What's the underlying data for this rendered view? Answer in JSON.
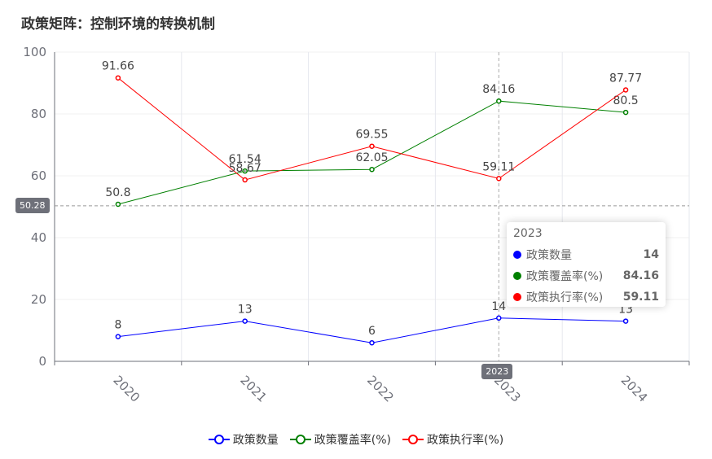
{
  "title": "政策矩阵：控制环境的转换机制",
  "chart_data": {
    "type": "line",
    "categories": [
      "2020",
      "2021",
      "2022",
      "2023",
      "2024"
    ],
    "ylim": [
      0,
      100
    ],
    "yticks": [
      0,
      20,
      40,
      60,
      80,
      100
    ],
    "grid": true,
    "legend_position": "bottom",
    "series": [
      {
        "name": "政策数量",
        "color": "#0000ff",
        "values": [
          8,
          13,
          6,
          14,
          13
        ],
        "labels": [
          "8",
          "13",
          "6",
          "14",
          "13"
        ]
      },
      {
        "name": "政策覆盖率(%)",
        "color": "#008000",
        "values": [
          50.8,
          61.54,
          62.05,
          84.16,
          80.5
        ],
        "labels": [
          "50.8",
          "61.54",
          "62.05",
          "84.16",
          "80.5"
        ]
      },
      {
        "name": "政策执行率(%)",
        "color": "#ff0000",
        "values": [
          91.66,
          58.67,
          69.55,
          59.11,
          87.77
        ],
        "labels": [
          "91.66",
          "58.67",
          "69.55",
          "59.11",
          "87.77"
        ]
      }
    ],
    "axis_pointer": {
      "y_value": 50.28,
      "y_label": "50.28",
      "x_category": "2023",
      "x_label": "2023"
    },
    "tooltip": {
      "title": "2023",
      "rows": [
        {
          "name": "政策数量",
          "value": "14",
          "color": "#0000ff"
        },
        {
          "name": "政策覆盖率(%)",
          "value": "84.16",
          "color": "#008000"
        },
        {
          "name": "政策执行率(%)",
          "value": "59.11",
          "color": "#ff0000"
        }
      ]
    }
  }
}
